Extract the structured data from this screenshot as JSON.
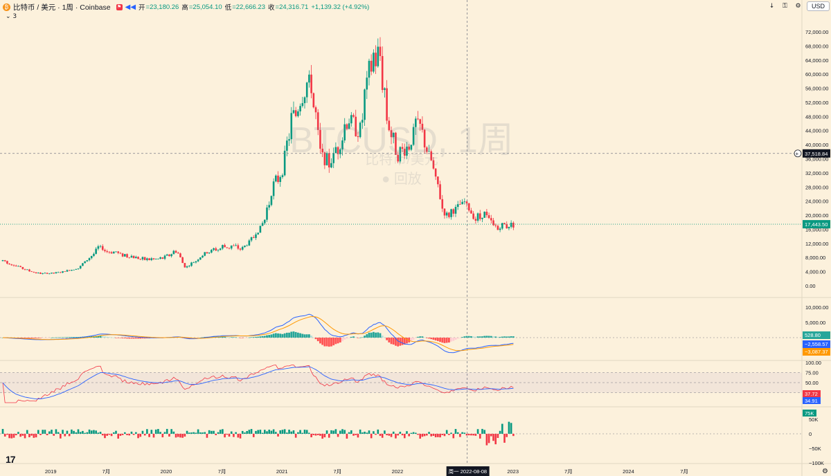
{
  "legend": {
    "coin_icon": "₿",
    "symbol": "比特币 / 美元 · 1周 · Coinbase",
    "open_label": "开",
    "open": "=23,180.26",
    "high_label": "高",
    "high": "=25,054.10",
    "low_label": "低",
    "low": "=22,666.23",
    "close_label": "收",
    "close": "=24,316.71",
    "change": "+1,139.32 (+4.92%)",
    "collapse": "⌄ 3"
  },
  "toolbar": {
    "currency": "USD",
    "down_icon": "↓",
    "lock_icon": "🔒",
    "gear_icon": "⚙"
  },
  "watermark": {
    "ticker": "BTCUSD, 1周",
    "name": "比特币/美元",
    "replay": "回放"
  },
  "tv_logo": "17",
  "colors": {
    "up": "#089981",
    "down": "#f23645",
    "background": "#fcf1dc",
    "macd_line": "#2962ff",
    "signal_line": "#ff9800",
    "rsi_line": "#7e57c2"
  },
  "price_axis": [
    "72,000.00",
    "68,000.00",
    "64,000.00",
    "60,000.00",
    "56,000.00",
    "52,000.00",
    "48,000.00",
    "44,000.00",
    "40,000.00",
    "36,000.00",
    "32,000.00",
    "28,000.00",
    "24,000.00",
    "20,000.00",
    "16,000.00",
    "12,000.00",
    "8,000.00",
    "4,000.00",
    "0.00"
  ],
  "price_ticks": [
    72000,
    68000,
    64000,
    60000,
    56000,
    52000,
    48000,
    44000,
    40000,
    36000,
    32000,
    28000,
    24000,
    20000,
    16000,
    12000,
    8000,
    4000,
    0
  ],
  "price_badges": {
    "crosshair": "37,518.84",
    "crosshair_value": 37518.84,
    "last": "17,443.50",
    "last_value": 17443.5
  },
  "macd_axis": [
    "10,000.00",
    "5,000.00"
  ],
  "macd_ticks": [
    10000,
    5000
  ],
  "macd_badges": {
    "hist": "528.80",
    "macd": "−2,558.57",
    "signal": "−3,087.37"
  },
  "rsi_axis": [
    "100.00",
    "75.00",
    "50.00",
    "25.00"
  ],
  "rsi_ticks": [
    100,
    75,
    50,
    25
  ],
  "rsi_badges": {
    "rsi": "37.72",
    "ma": "34.91"
  },
  "vol_axis": [
    "50K",
    "0",
    "−50K",
    "−100K"
  ],
  "vol_ticks": [
    50000,
    0,
    -50000,
    -100000
  ],
  "vol_badge": "75K",
  "time_axis": [
    "2019",
    "7月",
    "2020",
    "7月",
    "2021",
    "7月",
    "2022",
    "2023",
    "7月",
    "2024",
    "7月"
  ],
  "crosshair_date": "周一  2022-08-08",
  "chart_data": {
    "type": "candlestick",
    "interval": "1周",
    "x_range": [
      "2018-08",
      "2025-07"
    ],
    "price_series": [
      [
        "2018-08",
        7000
      ],
      [
        "2018-11",
        4000
      ],
      [
        "2018-12",
        3400
      ],
      [
        "2019-02",
        3800
      ],
      [
        "2019-04",
        5200
      ],
      [
        "2019-06",
        11000
      ],
      [
        "2019-07",
        9800
      ],
      [
        "2019-09",
        8300
      ],
      [
        "2019-12",
        7200
      ],
      [
        "2020-02",
        9800
      ],
      [
        "2020-03",
        5000
      ],
      [
        "2020-05",
        9200
      ],
      [
        "2020-07",
        11200
      ],
      [
        "2020-09",
        10700
      ],
      [
        "2020-11",
        17500
      ],
      [
        "2020-12",
        28000
      ],
      [
        "2021-01",
        33000
      ],
      [
        "2021-02",
        48000
      ],
      [
        "2021-04",
        58000
      ],
      [
        "2021-05",
        37000
      ],
      [
        "2021-06",
        35000
      ],
      [
        "2021-07",
        40000
      ],
      [
        "2021-08",
        48000
      ],
      [
        "2021-09",
        43000
      ],
      [
        "2021-10",
        61000
      ],
      [
        "2021-11",
        65000
      ],
      [
        "2021-12",
        47000
      ],
      [
        "2022-01",
        37000
      ],
      [
        "2022-02",
        38500
      ],
      [
        "2022-03",
        46500
      ],
      [
        "2022-04",
        39500
      ],
      [
        "2022-05",
        29500
      ],
      [
        "2022-06",
        19500
      ],
      [
        "2022-08",
        23500
      ],
      [
        "2022-09",
        19400
      ],
      [
        "2022-10",
        20500
      ],
      [
        "2022-11",
        16500
      ],
      [
        "2023-01",
        17443.5
      ]
    ],
    "rsi_overbought": 75,
    "rsi_oversold": 25
  }
}
